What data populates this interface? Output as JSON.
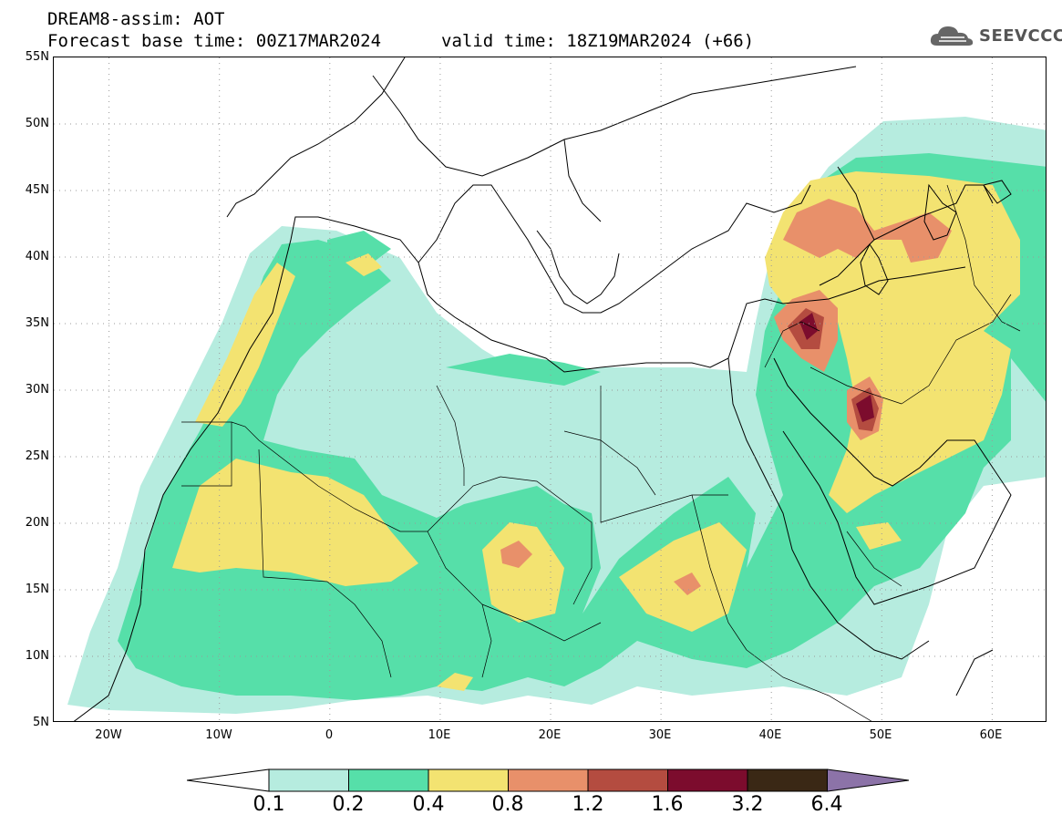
{
  "header": {
    "line1": "DREAM8-assim: AOT",
    "line2": "Forecast base time: 00Z17MAR2024",
    "valid": "valid time: 18Z19MAR2024 (+66)",
    "logo_text": "SEEVCCC",
    "logo_icon": "cloud-icon"
  },
  "map": {
    "lon_range": [
      -25,
      65
    ],
    "lat_range": [
      5,
      55
    ],
    "lat_labels": [
      "55N",
      "50N",
      "45N",
      "40N",
      "35N",
      "30N",
      "25N",
      "20N",
      "15N",
      "10N",
      "5N"
    ],
    "lon_labels": [
      "20W",
      "10W",
      "0",
      "10E",
      "20E",
      "30E",
      "40E",
      "50E",
      "60E"
    ],
    "grid": "dotted"
  },
  "colorbar": {
    "colors": [
      "#ffffff",
      "#b6ecdf",
      "#56dfa9",
      "#f3e371",
      "#e8906a",
      "#b44c40",
      "#7c0c2d",
      "#3a2815",
      "#8c73a8"
    ],
    "labels": [
      "0.1",
      "0.2",
      "0.4",
      "0.8",
      "1.2",
      "1.6",
      "3.2",
      "6.4"
    ]
  }
}
